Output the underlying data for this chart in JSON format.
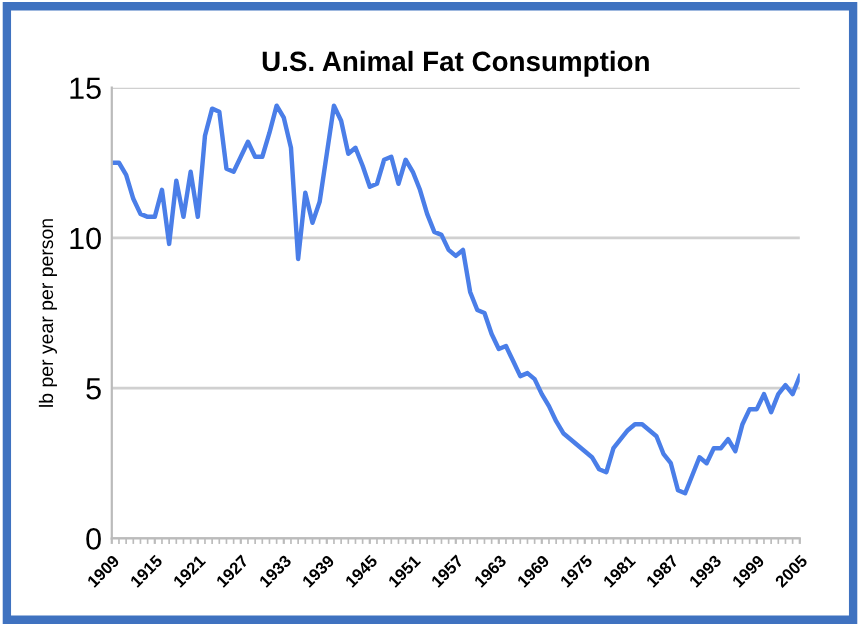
{
  "chart_data": {
    "type": "line",
    "title": "U.S. Animal Fat Consumption",
    "ylabel": "lb per year per person",
    "x": [
      1909,
      1910,
      1911,
      1912,
      1913,
      1914,
      1915,
      1916,
      1917,
      1918,
      1919,
      1920,
      1921,
      1922,
      1923,
      1924,
      1925,
      1926,
      1927,
      1928,
      1929,
      1930,
      1931,
      1932,
      1933,
      1934,
      1935,
      1936,
      1937,
      1938,
      1939,
      1940,
      1941,
      1942,
      1943,
      1944,
      1945,
      1946,
      1947,
      1948,
      1949,
      1950,
      1951,
      1952,
      1953,
      1954,
      1955,
      1956,
      1957,
      1958,
      1959,
      1960,
      1961,
      1962,
      1963,
      1964,
      1965,
      1966,
      1967,
      1968,
      1969,
      1970,
      1971,
      1972,
      1973,
      1974,
      1975,
      1976,
      1977,
      1978,
      1979,
      1980,
      1981,
      1982,
      1983,
      1984,
      1985,
      1986,
      1987,
      1988,
      1989,
      1990,
      1991,
      1992,
      1993,
      1994,
      1995,
      1996,
      1997,
      1998,
      1999,
      2000,
      2001,
      2002,
      2003,
      2004,
      2005
    ],
    "series": [
      {
        "color": "#4a7ee8",
        "values": [
          12.5,
          12.5,
          12.1,
          11.3,
          10.8,
          10.7,
          10.7,
          11.6,
          9.8,
          11.9,
          10.7,
          12.2,
          10.7,
          13.4,
          14.3,
          14.2,
          12.3,
          12.2,
          12.7,
          13.2,
          12.7,
          12.7,
          13.5,
          14.4,
          14.0,
          13.0,
          9.3,
          11.5,
          10.5,
          11.2,
          12.8,
          14.4,
          13.9,
          12.8,
          13.0,
          12.4,
          11.7,
          11.8,
          12.6,
          12.7,
          11.8,
          12.6,
          12.2,
          11.6,
          10.8,
          10.2,
          10.1,
          9.6,
          9.4,
          9.6,
          8.2,
          7.6,
          7.5,
          6.8,
          6.3,
          6.4,
          5.9,
          5.4,
          5.5,
          5.3,
          4.8,
          4.4,
          3.9,
          3.5,
          3.3,
          3.1,
          2.9,
          2.7,
          2.3,
          2.2,
          3.0,
          3.3,
          3.6,
          3.8,
          3.8,
          3.6,
          3.4,
          2.8,
          2.5,
          1.6,
          1.5,
          2.1,
          2.7,
          2.5,
          3.0,
          3.0,
          3.3,
          2.9,
          3.8,
          4.3,
          4.3,
          4.8,
          4.2,
          4.8,
          5.1,
          4.8,
          5.4
        ]
      }
    ],
    "xlim": [
      1909,
      2005
    ],
    "xticks": [
      1909,
      1915,
      1921,
      1927,
      1933,
      1939,
      1945,
      1951,
      1957,
      1963,
      1969,
      1975,
      1981,
      1987,
      1993,
      1999,
      2005
    ],
    "ylim": [
      0,
      15
    ],
    "yticks": [
      0,
      5,
      10,
      15
    ],
    "grid": "y",
    "legend": false,
    "marker": "none",
    "line_style": "solid"
  }
}
